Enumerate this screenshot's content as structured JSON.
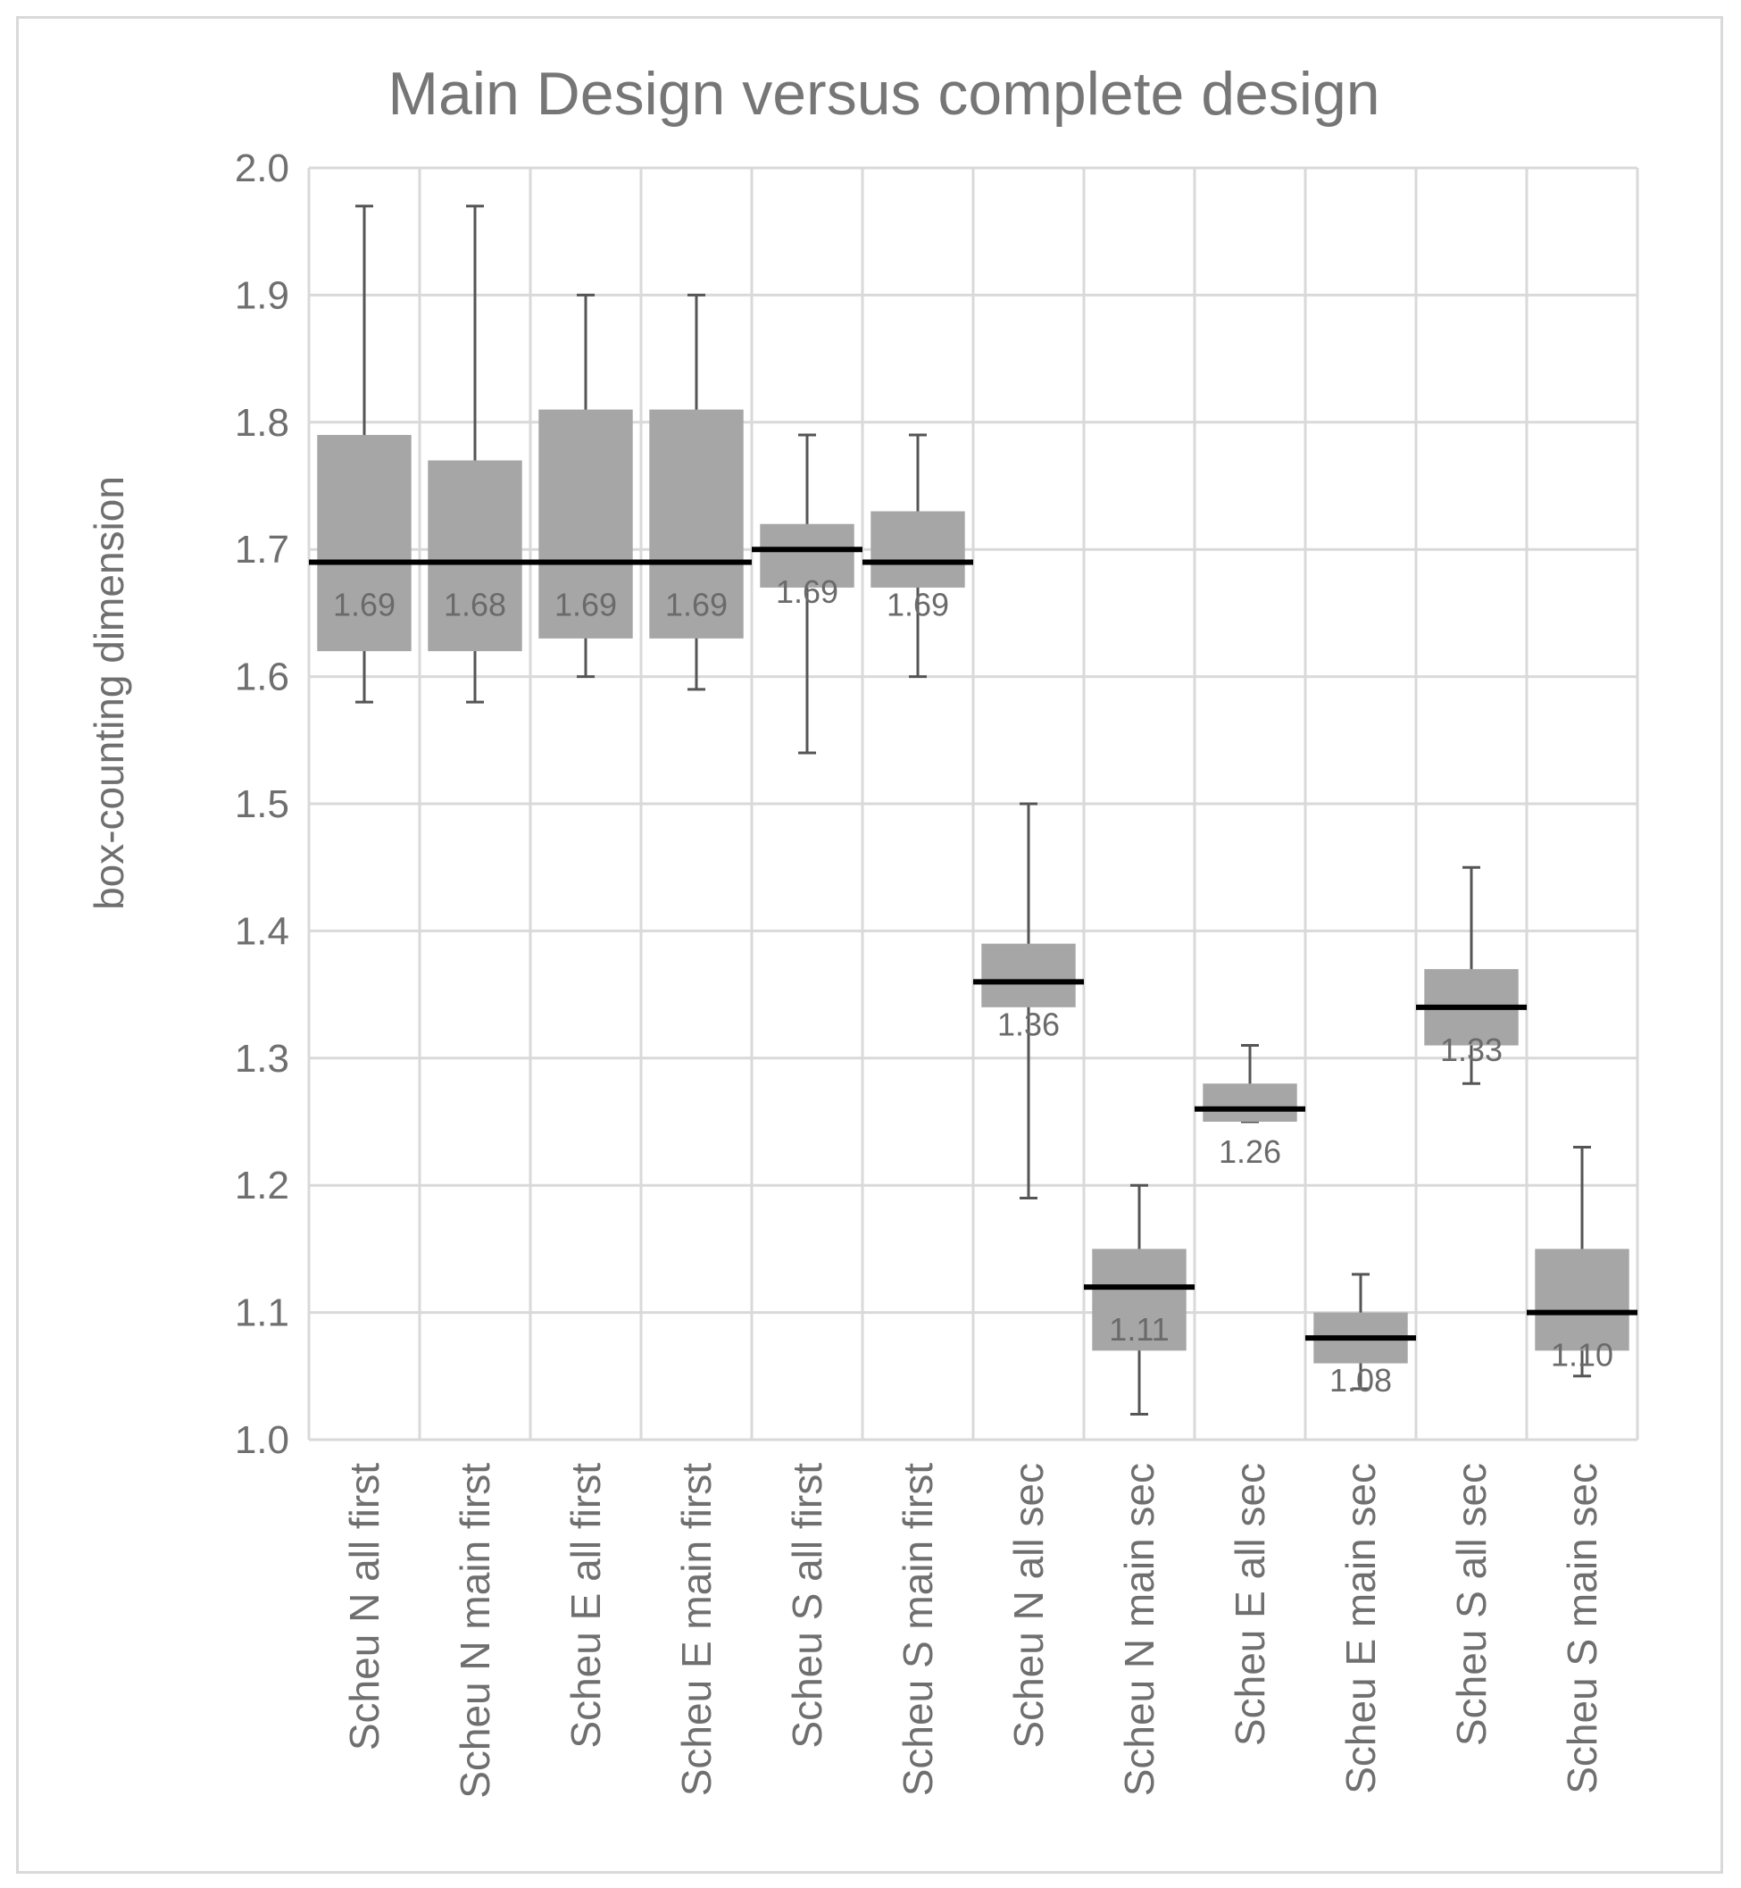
{
  "chart_data": {
    "type": "box",
    "title": "Main Design versus complete design",
    "ylabel": "box-counting dimension",
    "xlabel": "",
    "ylim": [
      1.0,
      2.0
    ],
    "yticks": [
      "1.0",
      "1.1",
      "1.2",
      "1.3",
      "1.4",
      "1.5",
      "1.6",
      "1.7",
      "1.8",
      "1.9",
      "2.0"
    ],
    "grid": true,
    "legend": "none",
    "colors": {
      "box": "#a6a6a6",
      "median": "#000000",
      "whisker": "#555555",
      "grid": "#d9d9d9"
    },
    "categories": [
      "Scheu N all first",
      "Scheu N main first",
      "Scheu E all first",
      "Scheu E main first",
      "Scheu S all first",
      "Scheu S main first",
      "Scheu N all sec",
      "Scheu N main sec",
      "Scheu E all sec",
      "Scheu E main sec",
      "Scheu S all sec",
      "Scheu S main sec"
    ],
    "boxes": [
      {
        "min": 1.58,
        "q1": 1.62,
        "median": 1.69,
        "q3": 1.79,
        "max": 1.97,
        "label": "1.69"
      },
      {
        "min": 1.58,
        "q1": 1.62,
        "median": 1.69,
        "q3": 1.77,
        "max": 1.97,
        "label": "1.68"
      },
      {
        "min": 1.6,
        "q1": 1.63,
        "median": 1.69,
        "q3": 1.81,
        "max": 1.9,
        "label": "1.69"
      },
      {
        "min": 1.59,
        "q1": 1.63,
        "median": 1.69,
        "q3": 1.81,
        "max": 1.9,
        "label": "1.69"
      },
      {
        "min": 1.54,
        "q1": 1.67,
        "median": 1.7,
        "q3": 1.72,
        "max": 1.79,
        "label": "1.69"
      },
      {
        "min": 1.6,
        "q1": 1.67,
        "median": 1.69,
        "q3": 1.73,
        "max": 1.79,
        "label": "1.69"
      },
      {
        "min": 1.19,
        "q1": 1.34,
        "median": 1.36,
        "q3": 1.39,
        "max": 1.5,
        "label": "1.36"
      },
      {
        "min": 1.02,
        "q1": 1.07,
        "median": 1.12,
        "q3": 1.15,
        "max": 1.2,
        "label": "1.11"
      },
      {
        "min": 1.25,
        "q1": 1.25,
        "median": 1.26,
        "q3": 1.28,
        "max": 1.31,
        "label": "1.26"
      },
      {
        "min": 1.04,
        "q1": 1.06,
        "median": 1.08,
        "q3": 1.1,
        "max": 1.13,
        "label": "1.08"
      },
      {
        "min": 1.28,
        "q1": 1.31,
        "median": 1.34,
        "q3": 1.37,
        "max": 1.45,
        "label": "1.33"
      },
      {
        "min": 1.05,
        "q1": 1.07,
        "median": 1.1,
        "q3": 1.15,
        "max": 1.23,
        "label": "1.10"
      }
    ]
  }
}
